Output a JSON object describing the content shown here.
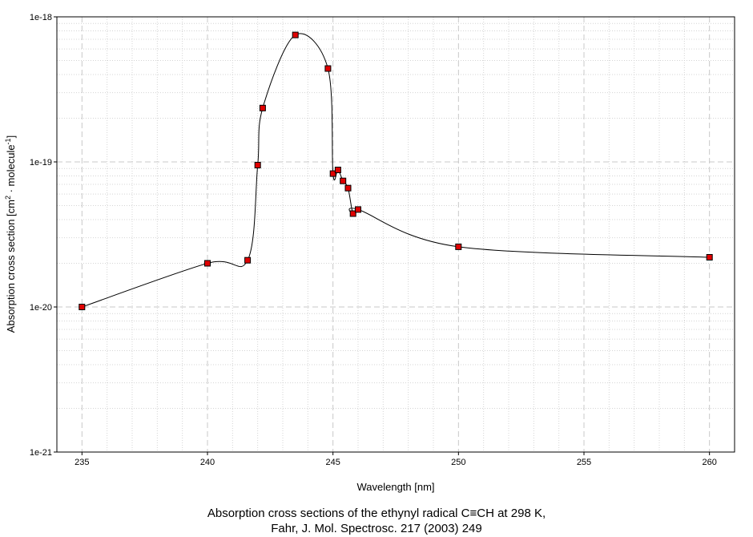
{
  "chart_data": {
    "type": "scatter",
    "xlabel": "Wavelength [nm]",
    "ylabel": "Absorption cross section [cm2 · molecule-1]",
    "ylabel_parts": {
      "pre": "Absorption cross section [cm",
      "sup1": "2",
      "mid": " · molecule",
      "sup2": "-1",
      "post": "]"
    },
    "xlim": [
      234,
      261
    ],
    "ylim": [
      1e-21,
      1e-18
    ],
    "yscale": "log",
    "x_ticks": [
      235,
      240,
      245,
      250,
      255,
      260
    ],
    "x_tick_labels": [
      "235",
      "240",
      "245",
      "250",
      "255",
      "260"
    ],
    "y_ticks": [
      1e-21,
      1e-20,
      1e-19,
      1e-18
    ],
    "y_tick_labels": [
      "1e-21",
      "1e-20",
      "1e-19",
      "1e-18"
    ],
    "grid": true,
    "series": [
      {
        "marker": "square",
        "marker_color": "#e00000",
        "line_color": "#000000",
        "x": [
          235.0,
          240.0,
          241.6,
          242.0,
          242.2,
          243.5,
          244.8,
          245.0,
          245.2,
          245.4,
          245.6,
          245.8,
          246.0,
          250.0,
          260.0
        ],
        "y": [
          1e-20,
          2e-20,
          2.1e-20,
          9.5e-20,
          2.35e-19,
          7.5e-19,
          4.4e-19,
          8.3e-20,
          8.8e-20,
          7.4e-20,
          6.6e-20,
          4.4e-20,
          4.7e-20,
          2.6e-20,
          2.2e-20
        ]
      }
    ]
  },
  "caption": {
    "line1": "Absorption cross sections of the ethynyl radical C≡CH at 298 K,",
    "line2": "Fahr, J. Mol. Spectrosc. 217 (2003) 249"
  }
}
